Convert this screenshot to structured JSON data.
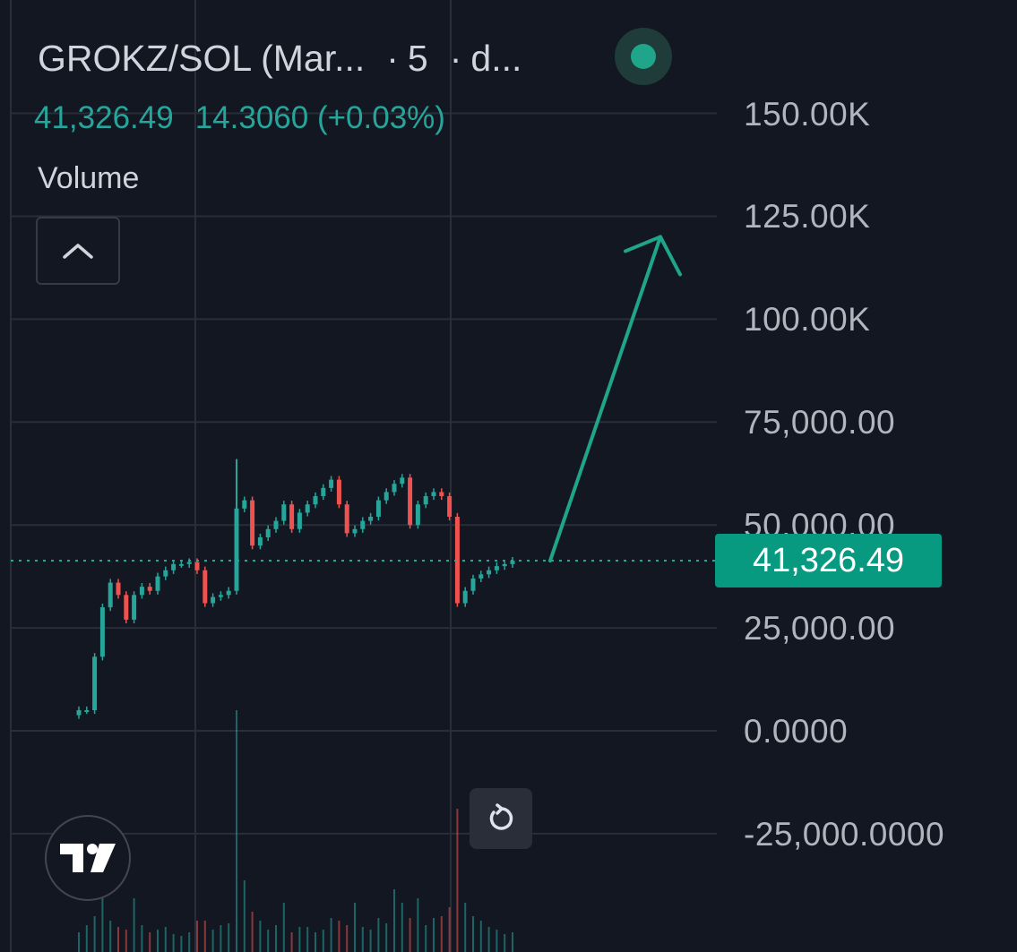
{
  "header": {
    "title": "GROKZ/SOL (Mar...",
    "separator": "·",
    "interval": "5",
    "exchange": "d...",
    "last_price": "41,326.49",
    "change": "14.3060 (+0.03%)",
    "volume_label": "Volume",
    "live_color": "#1fa589"
  },
  "price_tag": "41,326.49",
  "icons": {
    "collapse": "chevron-up-icon",
    "reset": "reset-icon",
    "logo": "tradingview-logo-icon",
    "live": "live-status-icon"
  },
  "colors": {
    "background": "#131722",
    "up": "#26a69a",
    "down": "#ef5350",
    "grid": "#2a2e39",
    "price_tag_bg": "#089981"
  },
  "chart_data": {
    "type": "candlestick",
    "y_ticks": [
      "150.00K",
      "125.00K",
      "100.00K",
      "75,000.00",
      "50,000.00",
      "25,000.00",
      "0.0000",
      "-25,000.0000"
    ],
    "y_tick_values": [
      150000,
      125000,
      100000,
      75000,
      50000,
      25000,
      0,
      -25000
    ],
    "ylim": [
      -28500,
      161000
    ],
    "last_price": 41326.49,
    "grid": true,
    "annotation": {
      "type": "arrow",
      "from": [
        100,
        41326
      ],
      "to": [
        125,
        120000
      ]
    },
    "close_path": [
      5000,
      5000,
      18000,
      30000,
      36000,
      33000,
      27000,
      33000,
      35000,
      34000,
      37500,
      39000,
      40500,
      40500,
      41000,
      39000,
      31000,
      32500,
      33000,
      34000,
      54000,
      56000,
      45000,
      47000,
      49000,
      51000,
      55000,
      49000,
      53000,
      55000,
      57000,
      59000,
      61000,
      55000,
      48000,
      49000,
      51000,
      52000,
      56000,
      58000,
      60000,
      61500,
      50000,
      55000,
      57000,
      58000,
      57000,
      52000,
      31000,
      34000,
      37000,
      38000,
      39000,
      40000,
      40500,
      41326
    ],
    "volume_path": [
      22,
      30,
      40,
      60,
      35,
      28,
      25,
      60,
      30,
      22,
      25,
      28,
      20,
      18,
      22,
      35,
      35,
      25,
      30,
      32,
      270,
      80,
      45,
      35,
      25,
      30,
      55,
      22,
      28,
      28,
      22,
      25,
      38,
      35,
      30,
      55,
      28,
      25,
      38,
      32,
      70,
      55,
      38,
      60,
      30,
      38,
      40,
      50,
      160,
      55,
      40,
      35,
      28,
      25,
      20,
      22
    ]
  }
}
